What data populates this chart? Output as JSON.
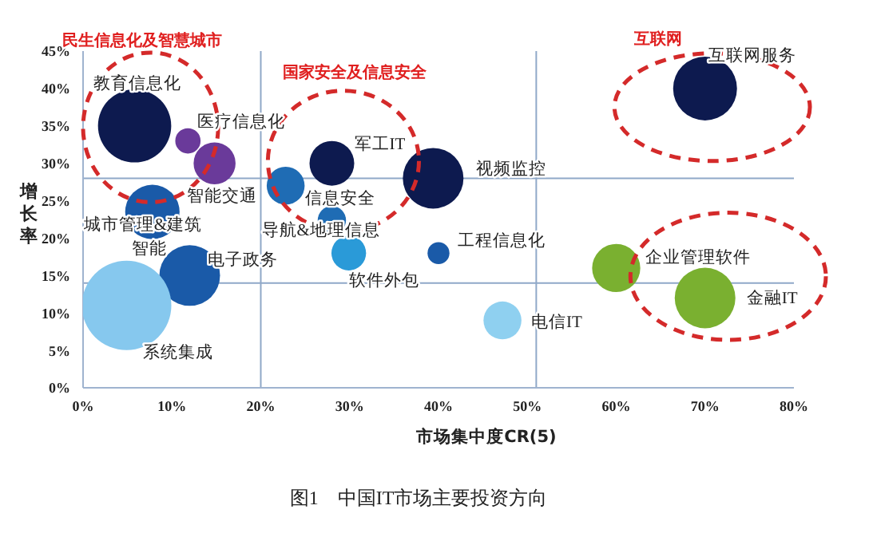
{
  "chart_data": {
    "type": "bubble",
    "xlabel": "市场集中度CR(5)",
    "ylabel": "增长率",
    "x": [
      5.8,
      11.8,
      14.8,
      22.8,
      28,
      39.4,
      28,
      7.8,
      12,
      4.9,
      29.9,
      40,
      47.2,
      60,
      70,
      70
    ],
    "values": [
      35,
      33,
      30,
      27,
      30,
      28,
      22.4,
      23.5,
      15,
      11,
      18,
      18,
      9,
      16,
      12,
      40
    ],
    "sizes": [
      0.67,
      0.08,
      0.22,
      0.18,
      0.25,
      0.46,
      0.1,
      0.37,
      0.46,
      1,
      0.15,
      0.06,
      0.18,
      0.29,
      0.46,
      0.51
    ],
    "colors": [
      "#0d1a4f",
      "#6a3a9a",
      "#6a3a9a",
      "#1f6cb4",
      "#0d1a4f",
      "#0d1a4f",
      "#1f6cb4",
      "#1a5aa8",
      "#1a5aa8",
      "#86c8ee",
      "#2a9ad8",
      "#1a5aa8",
      "#8fd0f0",
      "#7ab030",
      "#7ab030",
      "#0d1a4f"
    ],
    "xlim": [
      0,
      80
    ],
    "ylim": [
      0,
      45
    ],
    "xticks": [
      {
        "value": 0,
        "label": "0%"
      },
      {
        "value": 10,
        "label": "10%"
      },
      {
        "value": 20,
        "label": "20%"
      },
      {
        "value": 30,
        "label": "30%"
      },
      {
        "value": 40,
        "label": "40%"
      },
      {
        "value": 50,
        "label": "50%"
      },
      {
        "value": 60,
        "label": "60%"
      },
      {
        "value": 70,
        "label": "70%"
      },
      {
        "value": 80,
        "label": "80%"
      }
    ],
    "yticks": [
      {
        "value": 0,
        "label": "0%"
      },
      {
        "value": 5,
        "label": "5%"
      },
      {
        "value": 10,
        "label": "10%"
      },
      {
        "value": 15,
        "label": "15%"
      },
      {
        "value": 20,
        "label": "20%"
      },
      {
        "value": 25,
        "label": "25%"
      },
      {
        "value": 30,
        "label": "30%"
      },
      {
        "value": 35,
        "label": "35%"
      },
      {
        "value": 40,
        "label": "40%"
      },
      {
        "value": 45,
        "label": "45%"
      }
    ],
    "ref_lines": [
      {
        "axis": "x",
        "value": 20,
        "color": "#8fa8c8"
      },
      {
        "axis": "x",
        "value": 51,
        "color": "#8fa8c8"
      },
      {
        "axis": "y",
        "value": 28,
        "color": "#8fa8c8"
      },
      {
        "axis": "y",
        "value": 14,
        "color": "#8fa8c8"
      }
    ],
    "annotations": [
      {
        "text": "教育信息化",
        "x": 5.8,
        "y": 35
      },
      {
        "text": "医疗信息化",
        "x": 14.8,
        "y": 30
      },
      {
        "text": "智能交通",
        "x": 22.8,
        "y": 27
      },
      {
        "text": "城市管理&建筑",
        "x": 7.8,
        "y": 23.5
      },
      {
        "text": "智能",
        "x": 7.8,
        "y": 23.5
      },
      {
        "text": "电子政务",
        "x": 12,
        "y": 15
      },
      {
        "text": "系统集成",
        "x": 4.9,
        "y": 11
      },
      {
        "text": "军工IT",
        "x": 28,
        "y": 30
      },
      {
        "text": "信息安全",
        "x": 28,
        "y": 22.4
      },
      {
        "text": "导航&地理信息",
        "x": 28,
        "y": 22.4
      },
      {
        "text": "视频监控",
        "x": 39.4,
        "y": 28
      },
      {
        "text": "工程信息化",
        "x": 40,
        "y": 18
      },
      {
        "text": "软件外包",
        "x": 29.9,
        "y": 18
      },
      {
        "text": "电信IT",
        "x": 47.2,
        "y": 9
      },
      {
        "text": "企业管理软件",
        "x": 60,
        "y": 16
      },
      {
        "text": "金融IT",
        "x": 70,
        "y": 12
      },
      {
        "text": "互联网服务",
        "x": 70,
        "y": 40
      },
      "民生信息化及智慧城市",
      "国家安全及信息安全",
      "互联网",
      "图1　中国IT市场主要投资方向"
    ]
  }
}
